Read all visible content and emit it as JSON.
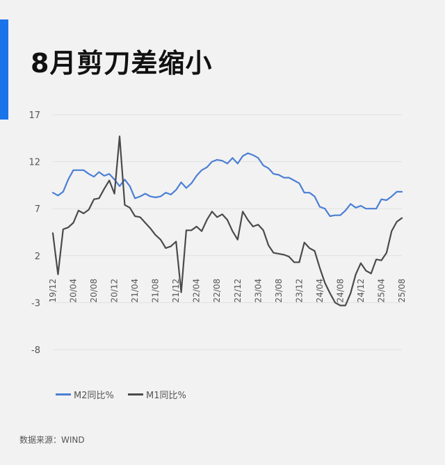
{
  "header": {
    "title": "8月剪刀差缩小"
  },
  "footer": {
    "source": "数据来源：WIND"
  },
  "colors": {
    "accent": "#1a73e8",
    "m2": "#4a7fd4",
    "m1": "#4a4a4a",
    "grid": "#e0e0e0"
  },
  "chart_data": {
    "type": "line",
    "title": "8月剪刀差缩小",
    "xlabel": "",
    "ylabel": "",
    "ylim": [
      -8,
      17
    ],
    "yticks": [
      -8,
      -3,
      2,
      7,
      12,
      17
    ],
    "grid": true,
    "legend_position": "bottom-left",
    "x_tick_labels": [
      "19/12",
      "20/04",
      "20/08",
      "20/12",
      "21/04",
      "21/08",
      "21/12",
      "22/04",
      "22/08",
      "22/12",
      "23/04",
      "23/08",
      "23/12",
      "24/04",
      "24/08",
      "24/12",
      "25/04",
      "25/08"
    ],
    "x": [
      "19/12",
      "20/01",
      "20/02",
      "20/03",
      "20/04",
      "20/05",
      "20/06",
      "20/07",
      "20/08",
      "20/09",
      "20/10",
      "20/11",
      "20/12",
      "21/01",
      "21/02",
      "21/03",
      "21/04",
      "21/05",
      "21/06",
      "21/07",
      "21/08",
      "21/09",
      "21/10",
      "21/11",
      "21/12",
      "22/01",
      "22/02",
      "22/03",
      "22/04",
      "22/05",
      "22/06",
      "22/07",
      "22/08",
      "22/09",
      "22/10",
      "22/11",
      "22/12",
      "23/01",
      "23/02",
      "23/03",
      "23/04",
      "23/05",
      "23/06",
      "23/07",
      "23/08",
      "23/09",
      "23/10",
      "23/11",
      "23/12",
      "24/01",
      "24/02",
      "24/03",
      "24/04",
      "24/05",
      "24/06",
      "24/07",
      "24/08",
      "24/09",
      "24/10",
      "24/11",
      "24/12",
      "25/01",
      "25/02",
      "25/03",
      "25/04",
      "25/05",
      "25/06",
      "25/07",
      "25/08"
    ],
    "series": [
      {
        "name": "M2同比%",
        "color": "#4a7fd4",
        "values": [
          8.7,
          8.4,
          8.8,
          10.1,
          11.1,
          11.1,
          11.1,
          10.7,
          10.4,
          10.9,
          10.5,
          10.7,
          10.1,
          9.4,
          10.1,
          9.4,
          8.1,
          8.3,
          8.6,
          8.3,
          8.2,
          8.3,
          8.7,
          8.5,
          9.0,
          9.8,
          9.2,
          9.7,
          10.5,
          11.1,
          11.4,
          12.0,
          12.2,
          12.1,
          11.8,
          12.4,
          11.8,
          12.6,
          12.9,
          12.7,
          12.4,
          11.6,
          11.3,
          10.7,
          10.6,
          10.3,
          10.3,
          10.0,
          9.7,
          8.7,
          8.7,
          8.3,
          7.2,
          7.0,
          6.2,
          6.3,
          6.3,
          6.8,
          7.5,
          7.1,
          7.3,
          7.0,
          7.0,
          7.0,
          8.0,
          7.9,
          8.3,
          8.8,
          8.8
        ]
      },
      {
        "name": "M1同比%",
        "color": "#4a4a4a",
        "values": [
          4.4,
          0.0,
          4.8,
          5.0,
          5.5,
          6.8,
          6.5,
          6.9,
          8.0,
          8.1,
          9.1,
          10.0,
          8.6,
          14.7,
          7.4,
          7.1,
          6.2,
          6.1,
          5.5,
          4.9,
          4.2,
          3.7,
          2.8,
          3.0,
          3.5,
          -1.9,
          4.7,
          4.7,
          5.1,
          4.6,
          5.8,
          6.7,
          6.1,
          6.4,
          5.8,
          4.6,
          3.7,
          6.7,
          5.8,
          5.1,
          5.3,
          4.7,
          3.1,
          2.3,
          2.2,
          2.1,
          1.9,
          1.3,
          1.3,
          3.4,
          2.8,
          2.5,
          0.7,
          -0.9,
          -2.0,
          -3.0,
          -3.3,
          -3.3,
          -2.0,
          0.0,
          1.2,
          0.4,
          0.1,
          1.6,
          1.5,
          2.3,
          4.6,
          5.6,
          6.0
        ]
      }
    ]
  }
}
